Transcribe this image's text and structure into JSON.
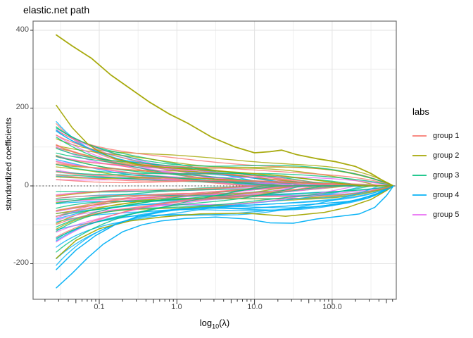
{
  "title": "elastic.net path",
  "palette": {
    "group1": "#F8766D",
    "group2": "#A3A500",
    "group3": "#00BF7D",
    "group4": "#00B0F6",
    "group5": "#E76BF3"
  },
  "panel": {
    "background": "#FFFFFF",
    "border_color": "#6E6E6E",
    "grid_major": "#E2E2E2",
    "grid_minor": "#EFEFEF",
    "tick_color": "#333333",
    "tick_label_color": "#4D4D4D",
    "zero_line_color": "#333333"
  },
  "legend": {
    "title": "labs",
    "items": [
      {
        "label": "group 1",
        "color_key": "group1"
      },
      {
        "label": "group 2",
        "color_key": "group2"
      },
      {
        "label": "group 3",
        "color_key": "group3"
      },
      {
        "label": "group 4",
        "color_key": "group4"
      },
      {
        "label": "group 5",
        "color_key": "group5"
      }
    ]
  },
  "axes": {
    "x": {
      "label_parts": {
        "main": "log",
        "sub": "10",
        "rest": "(λ)"
      },
      "scale": "log10",
      "ticks": [
        {
          "value": 0.1,
          "label": "0.1"
        },
        {
          "value": 1.0,
          "label": "1.0"
        },
        {
          "value": 10.0,
          "label": "10.0"
        },
        {
          "value": 100.0,
          "label": "100.0"
        }
      ]
    },
    "y": {
      "label": "standardized coefficients",
      "ticks": [
        {
          "value": 400,
          "label": "400"
        },
        {
          "value": 200,
          "label": "200"
        },
        {
          "value": 0,
          "label": "0"
        },
        {
          "value": -200,
          "label": "-200"
        }
      ]
    }
  },
  "chart_data": {
    "type": "line",
    "title": "elastic.net path",
    "xlabel": "log10(lambda)",
    "ylabel": "standardized coefficients",
    "x_scale": "log10",
    "x_log_domain": [
      -1.85,
      2.83
    ],
    "x_data_log_range": [
      -1.553,
      2.79
    ],
    "ylim": [
      -290,
      423
    ],
    "y_major_gridlines": [
      400,
      200,
      0,
      -200
    ],
    "y_minor_gridlines": [
      300,
      100,
      -100
    ],
    "x_major_gridlines_log": [
      -1,
      0,
      1,
      2
    ],
    "x_minor_gridlines_log": [
      -1.5,
      -0.5,
      0.5,
      1.5,
      2.5
    ],
    "zero_reference_line": {
      "y": 0,
      "style": "dotted",
      "color": "#333333"
    },
    "groups": [
      "group 1",
      "group 2",
      "group 3",
      "group 4",
      "group 5"
    ],
    "featured_series": [
      {
        "name": "largest positive path",
        "group": 2,
        "points": [
          [
            -1.553,
            388
          ],
          [
            -1.35,
            360
          ],
          [
            -1.1,
            328
          ],
          [
            -0.85,
            285
          ],
          [
            -0.6,
            250
          ],
          [
            -0.35,
            215
          ],
          [
            -0.1,
            185
          ],
          [
            0.15,
            160
          ],
          [
            0.45,
            125
          ],
          [
            0.75,
            100
          ],
          [
            1.0,
            85
          ],
          [
            1.2,
            88
          ],
          [
            1.35,
            92
          ],
          [
            1.55,
            80
          ],
          [
            1.8,
            70
          ],
          [
            2.05,
            62
          ],
          [
            2.3,
            50
          ],
          [
            2.5,
            32
          ],
          [
            2.65,
            14
          ],
          [
            2.79,
            0
          ]
        ]
      },
      {
        "name": "steep positive path",
        "group": 2,
        "points": [
          [
            -1.553,
            207
          ],
          [
            -1.35,
            150
          ],
          [
            -1.15,
            108
          ],
          [
            -1.0,
            88
          ],
          [
            -0.8,
            70
          ],
          [
            -0.5,
            55
          ],
          [
            -0.2,
            48
          ],
          [
            0.2,
            42
          ],
          [
            0.8,
            35
          ],
          [
            1.4,
            25
          ],
          [
            1.9,
            12
          ],
          [
            2.2,
            4
          ],
          [
            2.4,
            0
          ],
          [
            2.79,
            0
          ]
        ]
      },
      {
        "name": "olive negative path",
        "group": 2,
        "points": [
          [
            -1.553,
            -186
          ],
          [
            -1.3,
            -140
          ],
          [
            -1.0,
            -110
          ],
          [
            -0.6,
            -90
          ],
          [
            -0.2,
            -80
          ],
          [
            0.3,
            -72
          ],
          [
            0.9,
            -70
          ],
          [
            1.4,
            -78
          ],
          [
            1.9,
            -68
          ],
          [
            2.2,
            -55
          ],
          [
            2.5,
            -35
          ],
          [
            2.7,
            -12
          ],
          [
            2.79,
            0
          ]
        ]
      },
      {
        "name": "deepest negative path",
        "group": 4,
        "points": [
          [
            -1.553,
            -262
          ],
          [
            -1.35,
            -225
          ],
          [
            -1.15,
            -185
          ],
          [
            -0.95,
            -150
          ],
          [
            -0.7,
            -118
          ],
          [
            -0.45,
            -100
          ],
          [
            -0.2,
            -90
          ],
          [
            0.1,
            -84
          ],
          [
            0.5,
            -80
          ],
          [
            0.9,
            -85
          ],
          [
            1.2,
            -95
          ],
          [
            1.5,
            -96
          ],
          [
            1.8,
            -85
          ],
          [
            2.1,
            -78
          ],
          [
            2.35,
            -72
          ],
          [
            2.55,
            -55
          ],
          [
            2.7,
            -25
          ],
          [
            2.79,
            0
          ]
        ]
      },
      {
        "name": "second deep negative path",
        "group": 4,
        "points": [
          [
            -1.553,
            -215
          ],
          [
            -1.3,
            -165
          ],
          [
            -1.05,
            -128
          ],
          [
            -0.8,
            -100
          ],
          [
            -0.5,
            -78
          ],
          [
            -0.1,
            -62
          ],
          [
            0.4,
            -55
          ],
          [
            0.9,
            -58
          ],
          [
            1.4,
            -52
          ],
          [
            1.9,
            -45
          ],
          [
            2.2,
            -40
          ],
          [
            2.45,
            -32
          ],
          [
            2.65,
            -15
          ],
          [
            2.79,
            0
          ]
        ]
      }
    ],
    "bulk_series": {
      "description": "coefficient paths; each spec: [group, start_value, plateau, decay_rate, end_log10_lambda, collapse_exp, wiggle_amp, wiggle_freq, wiggle_phase]",
      "t_start": -1.553,
      "t_end": 2.79,
      "specs": [
        [
          1,
          165,
          40,
          1.6,
          1.9,
          3,
          10,
          2.0,
          0.5
        ],
        [
          2,
          130,
          62,
          1.3,
          2.79,
          8,
          9,
          1.9,
          1.5
        ],
        [
          3,
          158,
          48,
          1.6,
          2.0,
          3,
          10,
          2.1,
          2.6
        ],
        [
          4,
          172,
          50,
          1.8,
          1.3,
          2.5,
          10,
          2.0,
          0.7
        ],
        [
          5,
          145,
          42,
          1.5,
          1.7,
          3,
          9,
          2.2,
          3.4
        ],
        [
          1,
          148,
          55,
          1.4,
          2.79,
          7,
          8,
          1.8,
          2.1
        ],
        [
          2,
          108,
          50,
          1.2,
          2.79,
          7,
          8,
          2.3,
          3.1
        ],
        [
          3,
          140,
          52,
          1.4,
          2.79,
          7,
          9,
          1.7,
          4.4
        ],
        [
          4,
          152,
          46,
          1.6,
          0.9,
          2.5,
          9,
          2.4,
          2.4
        ],
        [
          5,
          124,
          38,
          1.4,
          1.2,
          2.5,
          8,
          1.9,
          5.2
        ],
        [
          1,
          128,
          45,
          1.5,
          1.5,
          3,
          9,
          2.4,
          4.0
        ],
        [
          2,
          92,
          44,
          1.1,
          2.6,
          5,
          7,
          2.0,
          4.9
        ],
        [
          3,
          122,
          40,
          1.4,
          1.6,
          3,
          8,
          2.5,
          0.3
        ],
        [
          4,
          133,
          40,
          1.5,
          1.6,
          3,
          8,
          1.9,
          4.2
        ],
        [
          5,
          102,
          32,
          1.2,
          2.0,
          3,
          8,
          2.4,
          0.8
        ],
        [
          1,
          112,
          38,
          1.3,
          1.1,
          2.5,
          7,
          2.2,
          1.3
        ],
        [
          2,
          76,
          30,
          1.0,
          2.0,
          3,
          7,
          2.5,
          0.4
        ],
        [
          3,
          104,
          34,
          1.2,
          2.4,
          4,
          8,
          2.0,
          1.9
        ],
        [
          4,
          62,
          20,
          1.0,
          1.1,
          2.5,
          6,
          2.6,
          5.9
        ],
        [
          5,
          80,
          26,
          1.1,
          1.5,
          3,
          7,
          2.0,
          2.6
        ],
        [
          1,
          96,
          30,
          1.2,
          2.2,
          3,
          8,
          2.6,
          5.2
        ],
        [
          2,
          60,
          24,
          0.9,
          1.4,
          2.5,
          6,
          2.2,
          2.3
        ],
        [
          3,
          88,
          28,
          1.1,
          1.2,
          2.5,
          7,
          2.6,
          3.5
        ],
        [
          4,
          30,
          12,
          0.8,
          1.9,
          3,
          5,
          2.1,
          1.6
        ],
        [
          5,
          58,
          20,
          1.0,
          2.79,
          8,
          6,
          1.7,
          4.5
        ],
        [
          1,
          82,
          35,
          1.0,
          2.79,
          8,
          7,
          1.6,
          0.9
        ],
        [
          2,
          44,
          16,
          0.8,
          1.0,
          2.5,
          5,
          2.7,
          5.5
        ],
        [
          3,
          72,
          26,
          1.0,
          2.79,
          8,
          6,
          1.8,
          5.3
        ],
        [
          4,
          -35,
          -18,
          0.8,
          2.79,
          8,
          5,
          1.7,
          3.2
        ],
        [
          5,
          38,
          14,
          0.8,
          1.0,
          2.5,
          5,
          2.5,
          0.3
        ],
        [
          1,
          68,
          22,
          1.1,
          1.7,
          3,
          6,
          2.8,
          2.7
        ],
        [
          2,
          28,
          12,
          0.7,
          2.3,
          4,
          5,
          1.8,
          1.0
        ],
        [
          3,
          58,
          20,
          0.9,
          1.8,
          3,
          6,
          2.3,
          0.9
        ],
        [
          4,
          -52,
          -26,
          0.9,
          2.79,
          9,
          6,
          2.2,
          5.1
        ],
        [
          5,
          20,
          8,
          0.7,
          2.2,
          4,
          4,
          2.1,
          1.9
        ],
        [
          1,
          54,
          18,
          0.9,
          1.3,
          2.5,
          6,
          2.1,
          3.8
        ],
        [
          2,
          -26,
          -10,
          0.8,
          1.1,
          2.5,
          5,
          2.4,
          3.6
        ],
        [
          3,
          42,
          15,
          0.8,
          1.4,
          2.5,
          5,
          2.7,
          2.2
        ],
        [
          4,
          -68,
          -34,
          1.0,
          2.79,
          8,
          6,
          1.8,
          0.2
        ],
        [
          5,
          -24,
          -10,
          0.8,
          1.3,
          2.5,
          5,
          2.3,
          3.8
        ],
        [
          1,
          40,
          14,
          0.8,
          0.9,
          2.5,
          5,
          2.5,
          1.7
        ],
        [
          2,
          -48,
          -18,
          1.0,
          1.7,
          3,
          6,
          2.0,
          5.0
        ],
        [
          3,
          25,
          10,
          0.7,
          2.6,
          5,
          4,
          1.9,
          4.1
        ],
        [
          4,
          -84,
          -42,
          1.1,
          2.79,
          9,
          7,
          2.0,
          2.9
        ],
        [
          5,
          -42,
          -16,
          0.9,
          1.8,
          3,
          6,
          1.8,
          5.7
        ],
        [
          1,
          26,
          10,
          0.7,
          2.5,
          4,
          5,
          1.9,
          5.7
        ],
        [
          2,
          -70,
          -26,
          1.2,
          2.2,
          3,
          7,
          2.3,
          0.6
        ],
        [
          3,
          -18,
          -8,
          0.7,
          1.0,
          2.5,
          4,
          2.4,
          5.8
        ],
        [
          4,
          -98,
          -48,
          1.2,
          2.79,
          8,
          7,
          1.6,
          4.8
        ],
        [
          5,
          -60,
          -22,
          1.0,
          2.79,
          8,
          6,
          2.0,
          1.3
        ],
        [
          1,
          15,
          8,
          0.6,
          2.79,
          8,
          4,
          2.3,
          0.2
        ],
        [
          2,
          -95,
          -34,
          1.3,
          1.5,
          3,
          8,
          1.9,
          2.8
        ],
        [
          3,
          -32,
          -12,
          0.8,
          1.5,
          3,
          5,
          2.1,
          1.2
        ],
        [
          4,
          -112,
          -54,
          1.2,
          2.79,
          9,
          8,
          2.3,
          0.5
        ],
        [
          5,
          -78,
          -28,
          1.1,
          1.4,
          2.5,
          7,
          2.4,
          3.1
        ],
        [
          1,
          -22,
          -9,
          0.8,
          1.0,
          2.5,
          5,
          2.2,
          2.9
        ],
        [
          2,
          -118,
          -42,
          1.4,
          2.79,
          7,
          8,
          2.1,
          4.3
        ],
        [
          3,
          -48,
          -18,
          0.9,
          2.79,
          8,
          6,
          1.6,
          3.0
        ],
        [
          4,
          -128,
          -58,
          1.3,
          2.79,
          8,
          8,
          1.9,
          2.1
        ],
        [
          5,
          -96,
          -34,
          1.2,
          2.1,
          3,
          8,
          1.9,
          5.0
        ],
        [
          1,
          -38,
          -14,
          0.9,
          1.6,
          3,
          6,
          2.0,
          4.6
        ],
        [
          2,
          -60,
          -30,
          0.9,
          2.79,
          8,
          6,
          1.6,
          1.8
        ],
        [
          3,
          -64,
          -24,
          1.1,
          2.1,
          3,
          7,
          2.2,
          4.7
        ],
        [
          4,
          -145,
          -62,
          1.4,
          2.79,
          9,
          9,
          2.1,
          3.7
        ],
        [
          5,
          -115,
          -40,
          1.3,
          1.6,
          3,
          8,
          2.1,
          0.6
        ],
        [
          1,
          -56,
          -20,
          1.1,
          2.1,
          3,
          7,
          2.4,
          1.9
        ],
        [
          3,
          -82,
          -30,
          1.2,
          1.3,
          2.5,
          7,
          2.5,
          0.1
        ],
        [
          4,
          -162,
          -55,
          1.5,
          2.4,
          4,
          9,
          1.8,
          5.4
        ],
        [
          5,
          -135,
          -46,
          1.4,
          2.3,
          4,
          9,
          2.3,
          2.2
        ],
        [
          1,
          -74,
          -26,
          1.2,
          1.2,
          2.5,
          7,
          2.6,
          3.3
        ],
        [
          3,
          -100,
          -36,
          1.3,
          1.9,
          3,
          8,
          1.8,
          2.0
        ],
        [
          4,
          -178,
          -60,
          1.6,
          2.79,
          8,
          10,
          2.0,
          1.1
        ],
        [
          1,
          -98,
          -32,
          1.4,
          2.79,
          7,
          8,
          1.7,
          5.9
        ],
        [
          3,
          -122,
          -42,
          1.4,
          2.5,
          4,
          8,
          2.0,
          3.9
        ],
        [
          4,
          -196,
          -70,
          1.7,
          2.6,
          5,
          10,
          2.2,
          2.5
        ],
        [
          1,
          -126,
          -40,
          1.5,
          1.8,
          3,
          9,
          2.1,
          0.8
        ],
        [
          3,
          -145,
          -50,
          1.5,
          1.1,
          2.5,
          9,
          2.3,
          5.6
        ],
        [
          3,
          -160,
          -55,
          1.6,
          1.6,
          3,
          10,
          1.9,
          1.4
        ]
      ]
    }
  }
}
